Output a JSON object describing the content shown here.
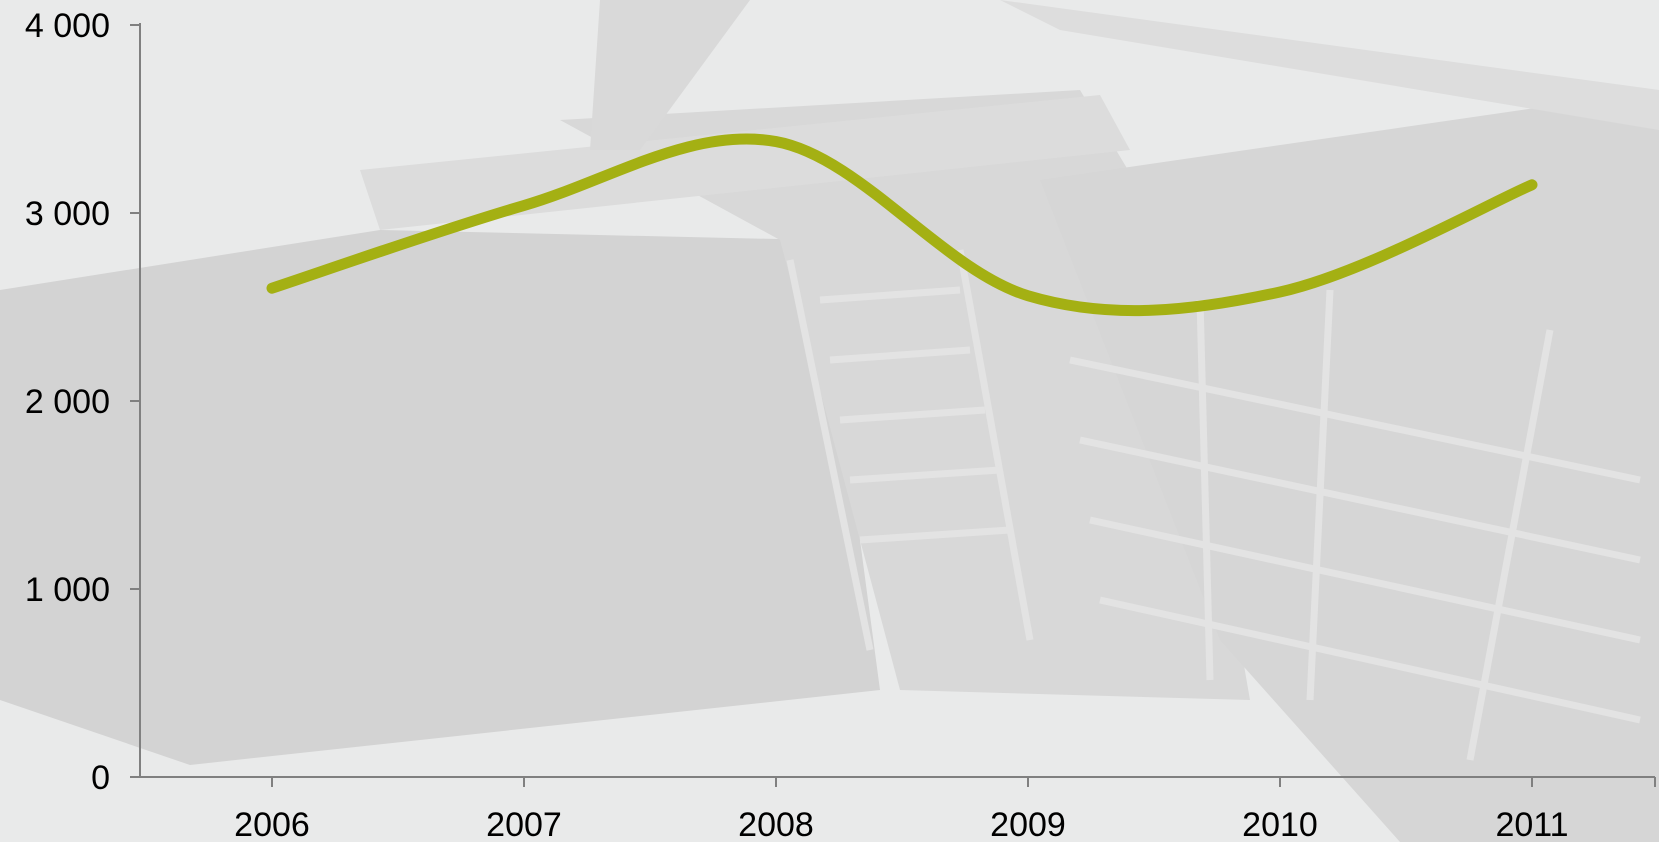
{
  "chart_data": {
    "type": "line",
    "title": "",
    "xlabel": "",
    "ylabel": "",
    "categories": [
      "2006",
      "2007",
      "2008",
      "2009",
      "2010",
      "2011"
    ],
    "series": [
      {
        "values": [
          2600,
          3040,
          3380,
          2560,
          2580,
          3150
        ]
      }
    ],
    "ylim": [
      0,
      4000
    ],
    "y_ticks": [
      0,
      1000,
      2000,
      3000,
      4000
    ],
    "y_tick_labels": [
      "0",
      "1 000",
      "2 000",
      "3 000",
      "4 000"
    ],
    "grid": false,
    "legend": "none",
    "smooth": true,
    "colors": {
      "line": "#a4b013",
      "axis": "#808080",
      "background": "#e9eaea",
      "photo_dark": "#cfcfcf",
      "photo_mid": "#d6d6d6",
      "photo_light": "#dedede"
    }
  }
}
